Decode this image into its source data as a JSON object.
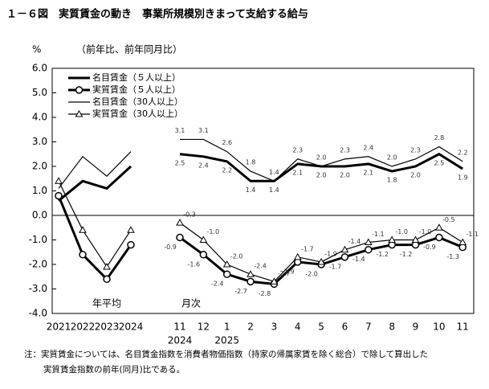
{
  "chart_data": {
    "type": "line",
    "title": "１－６図　実質賃金の動き　事業所規模別きまって支給する給与",
    "y_unit": "%",
    "y_label": "（前年比、前年同月比）",
    "annotations": [
      "年平均",
      "月次"
    ],
    "categories": [
      "2021",
      "2022",
      "2023",
      "2024",
      "11",
      "12",
      "1",
      "2",
      "3",
      "4",
      "5",
      "6",
      "7",
      "8",
      "9",
      "10",
      "11"
    ],
    "x_sublabels": [
      null,
      null,
      null,
      null,
      "2024",
      null,
      "2025",
      null,
      null,
      null,
      null,
      null,
      null,
      null,
      null,
      null,
      null
    ],
    "ylim": [
      -4,
      6
    ],
    "yticks": [
      {
        "value": 6,
        "label": "6.0"
      },
      {
        "value": 5,
        "label": "5.0"
      },
      {
        "value": 4,
        "label": "4.0"
      },
      {
        "value": 3,
        "label": "3.0"
      },
      {
        "value": 2,
        "label": "2.0"
      },
      {
        "value": 1,
        "label": "1.0"
      },
      {
        "value": 0,
        "label": "0.0"
      },
      {
        "value": -1,
        "label": "-1.0"
      },
      {
        "value": -2,
        "label": "-2.0"
      },
      {
        "value": -3,
        "label": "-3.0"
      },
      {
        "value": -4,
        "label": "-4.0"
      }
    ],
    "grid": false,
    "legend": "upper left",
    "series": [
      {
        "name": "名目賃金（５人以上）",
        "color": "#000000",
        "line_width": 3,
        "marker": null,
        "values": [
          0.6,
          1.4,
          1.1,
          2.0,
          2.5,
          2.4,
          2.2,
          1.4,
          1.4,
          2.1,
          2.0,
          2.0,
          2.1,
          1.8,
          2.0,
          2.5,
          1.9
        ],
        "value_labels": [
          null,
          null,
          null,
          null,
          "2.5",
          "2.4",
          "2.2",
          "1.4",
          "1.4",
          "2.1",
          "2.0",
          "2.0",
          "2.1",
          "1.8",
          "2.0",
          "2.5",
          "1.9"
        ]
      },
      {
        "name": "実質賃金（５人以上）",
        "color": "#000000",
        "line_width": 3,
        "marker": "circle",
        "values": [
          0.8,
          -1.6,
          -2.6,
          -1.2,
          -0.9,
          -1.6,
          -2.4,
          -2.7,
          -2.8,
          -1.9,
          -2.0,
          -1.7,
          -1.4,
          -1.2,
          -1.2,
          -0.9,
          -1.3
        ],
        "value_labels": [
          null,
          null,
          null,
          null,
          "-0.9",
          "-1.6",
          "-2.4",
          "-2.7",
          "-2.8",
          "-1.9",
          "-2.0",
          "-1.7",
          "-1.4",
          "-1.2",
          "-1.2",
          "-0.9",
          "-1.3"
        ]
      },
      {
        "name": "名目賃金（30人以上）",
        "color": "#000000",
        "line_width": 1.2,
        "marker": null,
        "values": [
          1.1,
          2.4,
          1.6,
          2.6,
          3.1,
          3.1,
          2.6,
          1.8,
          1.4,
          2.3,
          2.0,
          2.3,
          2.4,
          2.0,
          2.3,
          2.8,
          2.2
        ],
        "value_labels": [
          null,
          null,
          null,
          null,
          "3.1",
          "3.1",
          "2.6",
          "1.8",
          "1.4",
          "2.3",
          "2.0",
          "2.3",
          "2.4",
          "2.0",
          "2.3",
          "2.8",
          "2.2"
        ]
      },
      {
        "name": "実質賃金（30人以上）",
        "color": "#000000",
        "line_width": 1.2,
        "marker": "triangle",
        "values": [
          1.4,
          -0.6,
          -2.1,
          -0.6,
          -0.3,
          -1.0,
          -2.0,
          -2.4,
          -2.7,
          -1.7,
          -1.9,
          -1.4,
          -1.1,
          -1.0,
          -1.0,
          -0.5,
          -1.1
        ],
        "value_labels": [
          null,
          null,
          null,
          null,
          "-0.3",
          "-1.0",
          "-2.0",
          "-2.4",
          "-2.7",
          "-1.7",
          "-1.9",
          "-1.4",
          "-1.1",
          "-1.0",
          "-1.0",
          "-0.5",
          "-1.1"
        ]
      }
    ],
    "note": [
      "注：実質賃金については、名目賃金指数を消費者物価指数（持家の帰属家賃を除く総合）で除して算出した",
      "実質賃金指数の前年(同月)比である。"
    ]
  }
}
